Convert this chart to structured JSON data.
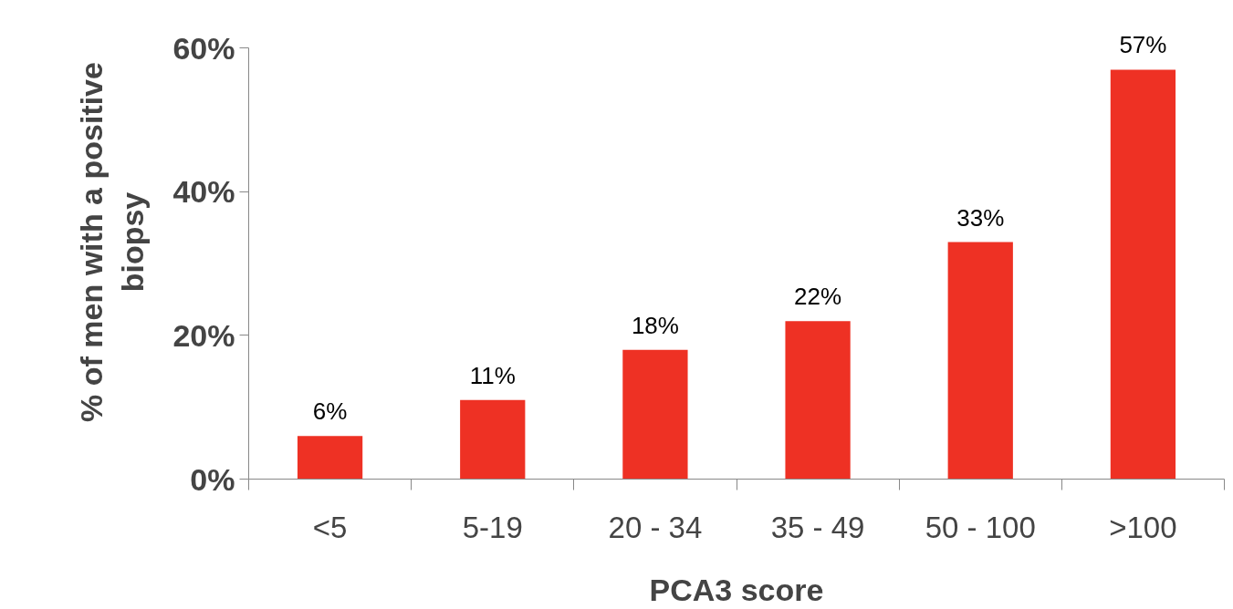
{
  "chart_data": {
    "type": "bar",
    "xlabel": "PCA3 score",
    "ylabel": "% of men with a positive\nbiopsy",
    "categories": [
      "<5",
      "5-19",
      "20 - 34",
      "35 - 49",
      "50 - 100",
      ">100"
    ],
    "values": [
      6,
      11,
      18,
      22,
      33,
      57
    ],
    "value_labels": [
      "6%",
      "11%",
      "18%",
      "22%",
      "33%",
      "57%"
    ],
    "color": "#ee3124",
    "ylim": [
      0,
      60
    ],
    "yticks": [
      {
        "value": 0,
        "label": "0%"
      },
      {
        "value": 20,
        "label": "20%"
      },
      {
        "value": 40,
        "label": "40%"
      },
      {
        "value": 60,
        "label": "60%"
      }
    ],
    "grid": false
  }
}
